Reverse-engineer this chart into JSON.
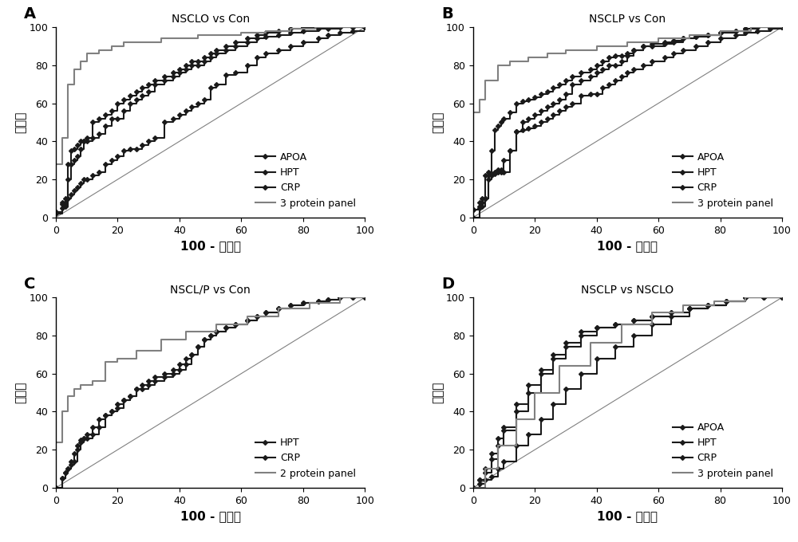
{
  "panels": [
    {
      "label": "A",
      "title": "NSCLO vs Con",
      "series": [
        {
          "name": "APOA",
          "x": [
            0,
            2,
            3,
            4,
            5,
            6,
            7,
            8,
            9,
            10,
            12,
            14,
            16,
            18,
            20,
            22,
            24,
            26,
            28,
            30,
            32,
            35,
            38,
            40,
            42,
            44,
            46,
            48,
            50,
            52,
            55,
            58,
            62,
            65,
            68,
            72,
            76,
            80,
            85,
            88,
            92,
            96,
            100
          ],
          "y": [
            3,
            7,
            8,
            20,
            28,
            30,
            32,
            36,
            40,
            40,
            42,
            44,
            48,
            52,
            52,
            56,
            60,
            62,
            64,
            66,
            70,
            72,
            74,
            76,
            78,
            80,
            80,
            82,
            84,
            86,
            88,
            90,
            92,
            94,
            95,
            96,
            97,
            98,
            99,
            99,
            100,
            100,
            100
          ],
          "style": "marker"
        },
        {
          "name": "HPT",
          "x": [
            0,
            2,
            3,
            4,
            5,
            6,
            7,
            8,
            9,
            10,
            12,
            14,
            16,
            18,
            20,
            22,
            24,
            26,
            28,
            30,
            32,
            35,
            38,
            40,
            42,
            44,
            46,
            48,
            50,
            52,
            55,
            58,
            62,
            65,
            68,
            72,
            76,
            80,
            85,
            88,
            92,
            96,
            100
          ],
          "y": [
            3,
            8,
            10,
            28,
            35,
            36,
            38,
            40,
            40,
            42,
            50,
            52,
            54,
            56,
            60,
            62,
            64,
            66,
            68,
            70,
            72,
            74,
            76,
            78,
            80,
            82,
            82,
            84,
            86,
            88,
            90,
            92,
            94,
            96,
            97,
            98,
            99,
            100,
            100,
            100,
            100,
            100,
            100
          ],
          "style": "marker"
        },
        {
          "name": "CRP",
          "x": [
            0,
            2,
            3,
            4,
            5,
            6,
            7,
            8,
            9,
            10,
            12,
            14,
            16,
            18,
            20,
            22,
            24,
            26,
            28,
            30,
            32,
            35,
            38,
            40,
            42,
            44,
            46,
            48,
            50,
            52,
            55,
            58,
            62,
            65,
            68,
            72,
            76,
            80,
            85,
            88,
            92,
            96,
            100
          ],
          "y": [
            2,
            5,
            6,
            10,
            12,
            14,
            16,
            18,
            20,
            20,
            22,
            24,
            28,
            30,
            32,
            35,
            36,
            36,
            38,
            40,
            42,
            50,
            52,
            54,
            56,
            58,
            60,
            62,
            68,
            70,
            75,
            76,
            80,
            84,
            86,
            88,
            90,
            92,
            94,
            96,
            97,
            98,
            100
          ],
          "style": "marker"
        },
        {
          "name": "3 protein panel",
          "x": [
            0,
            2,
            4,
            6,
            8,
            10,
            14,
            18,
            22,
            28,
            34,
            40,
            46,
            52,
            60,
            68,
            76,
            84,
            92,
            100
          ],
          "y": [
            28,
            42,
            70,
            78,
            82,
            86,
            88,
            90,
            92,
            92,
            94,
            94,
            96,
            96,
            97,
            98,
            99,
            100,
            100,
            100
          ],
          "style": "line"
        }
      ]
    },
    {
      "label": "B",
      "title": "NSCLP vs Con",
      "series": [
        {
          "name": "APOA",
          "x": [
            0,
            2,
            3,
            4,
            5,
            6,
            7,
            8,
            9,
            10,
            12,
            14,
            16,
            18,
            20,
            22,
            24,
            26,
            28,
            30,
            32,
            35,
            38,
            40,
            42,
            44,
            46,
            48,
            50,
            52,
            55,
            58,
            62,
            65,
            68,
            72,
            76,
            80,
            85,
            88,
            92,
            96,
            100
          ],
          "y": [
            0,
            5,
            6,
            10,
            20,
            22,
            24,
            25,
            25,
            30,
            35,
            45,
            50,
            52,
            54,
            56,
            58,
            60,
            62,
            65,
            70,
            72,
            74,
            76,
            78,
            80,
            80,
            82,
            85,
            88,
            90,
            90,
            92,
            93,
            94,
            95,
            96,
            97,
            98,
            99,
            100,
            100,
            100
          ],
          "style": "marker"
        },
        {
          "name": "HPT",
          "x": [
            0,
            2,
            3,
            4,
            5,
            6,
            7,
            8,
            9,
            10,
            12,
            14,
            16,
            18,
            20,
            22,
            24,
            26,
            28,
            30,
            32,
            35,
            38,
            40,
            42,
            44,
            46,
            48,
            50,
            52,
            55,
            58,
            62,
            65,
            68,
            72,
            76,
            80,
            85,
            88,
            92,
            96,
            100
          ],
          "y": [
            4,
            8,
            10,
            22,
            24,
            35,
            46,
            48,
            50,
            52,
            55,
            60,
            61,
            62,
            63,
            65,
            66,
            68,
            70,
            72,
            74,
            76,
            78,
            80,
            82,
            84,
            85,
            85,
            86,
            88,
            90,
            91,
            91,
            92,
            94,
            95,
            96,
            97,
            98,
            99,
            100,
            100,
            100
          ],
          "style": "marker"
        },
        {
          "name": "CRP",
          "x": [
            0,
            2,
            3,
            4,
            5,
            6,
            7,
            8,
            9,
            10,
            12,
            14,
            16,
            18,
            20,
            22,
            24,
            26,
            28,
            30,
            32,
            35,
            38,
            40,
            42,
            44,
            46,
            48,
            50,
            52,
            55,
            58,
            62,
            65,
            68,
            72,
            76,
            80,
            85,
            88,
            92,
            96,
            100
          ],
          "y": [
            4,
            6,
            8,
            10,
            22,
            23,
            23,
            24,
            24,
            24,
            35,
            45,
            46,
            47,
            48,
            50,
            52,
            54,
            56,
            58,
            60,
            64,
            65,
            65,
            68,
            70,
            72,
            74,
            76,
            78,
            80,
            82,
            84,
            86,
            88,
            90,
            92,
            94,
            96,
            97,
            98,
            99,
            100
          ],
          "style": "marker"
        },
        {
          "name": "3 protein panel",
          "x": [
            0,
            2,
            4,
            8,
            12,
            18,
            24,
            30,
            40,
            50,
            60,
            70,
            80,
            90,
            100
          ],
          "y": [
            55,
            62,
            72,
            80,
            82,
            84,
            86,
            88,
            90,
            92,
            94,
            96,
            98,
            100,
            100
          ],
          "style": "line"
        }
      ]
    },
    {
      "label": "C",
      "title": "NSCL/P vs Con",
      "series": [
        {
          "name": "HPT",
          "x": [
            0,
            2,
            3,
            4,
            5,
            6,
            7,
            8,
            9,
            10,
            12,
            14,
            16,
            18,
            20,
            22,
            24,
            26,
            28,
            30,
            32,
            35,
            38,
            40,
            42,
            44,
            46,
            48,
            50,
            52,
            55,
            58,
            62,
            65,
            68,
            72,
            76,
            80,
            85,
            88,
            92,
            96,
            100
          ],
          "y": [
            0,
            5,
            8,
            10,
            14,
            18,
            22,
            25,
            26,
            28,
            32,
            36,
            38,
            40,
            44,
            46,
            48,
            52,
            54,
            56,
            58,
            60,
            62,
            65,
            68,
            70,
            74,
            78,
            80,
            82,
            84,
            86,
            88,
            90,
            92,
            94,
            96,
            97,
            98,
            99,
            100,
            100,
            100
          ],
          "style": "marker"
        },
        {
          "name": "CRP",
          "x": [
            0,
            2,
            3,
            4,
            5,
            6,
            7,
            8,
            9,
            10,
            12,
            14,
            16,
            18,
            20,
            22,
            24,
            26,
            28,
            30,
            32,
            35,
            38,
            40,
            42,
            44,
            46,
            48,
            50,
            52,
            55,
            58,
            62,
            65,
            68,
            72,
            76,
            80,
            85,
            88,
            92,
            96,
            100
          ],
          "y": [
            0,
            5,
            8,
            10,
            12,
            14,
            20,
            24,
            26,
            26,
            28,
            32,
            38,
            40,
            42,
            46,
            48,
            52,
            52,
            54,
            56,
            58,
            60,
            62,
            65,
            70,
            74,
            78,
            80,
            82,
            84,
            86,
            88,
            90,
            92,
            94,
            96,
            97,
            98,
            99,
            100,
            100,
            100
          ],
          "style": "marker"
        },
        {
          "name": "2 protein panel",
          "x": [
            0,
            2,
            4,
            6,
            8,
            12,
            16,
            20,
            26,
            34,
            42,
            52,
            62,
            72,
            82,
            92,
            100
          ],
          "y": [
            24,
            40,
            48,
            52,
            54,
            56,
            66,
            68,
            72,
            78,
            82,
            86,
            90,
            94,
            97,
            100,
            100
          ],
          "style": "line"
        }
      ]
    },
    {
      "label": "D",
      "title": "NSCLP vs NSCLO",
      "series": [
        {
          "name": "APOA",
          "x": [
            0,
            2,
            4,
            6,
            8,
            10,
            14,
            18,
            22,
            26,
            30,
            35,
            40,
            46,
            52,
            58,
            64,
            70,
            76,
            82,
            88,
            94,
            100
          ],
          "y": [
            0,
            4,
            8,
            15,
            22,
            30,
            40,
            50,
            60,
            68,
            74,
            80,
            84,
            86,
            88,
            90,
            92,
            94,
            96,
            98,
            100,
            100,
            100
          ],
          "style": "marker"
        },
        {
          "name": "HPT",
          "x": [
            0,
            2,
            4,
            6,
            8,
            10,
            14,
            18,
            22,
            26,
            30,
            35,
            40,
            46,
            52,
            58,
            64,
            70,
            76,
            82,
            88,
            94,
            100
          ],
          "y": [
            0,
            4,
            10,
            18,
            26,
            32,
            44,
            54,
            62,
            70,
            76,
            82,
            84,
            86,
            88,
            90,
            92,
            94,
            96,
            98,
            100,
            100,
            100
          ],
          "style": "marker"
        },
        {
          "name": "CRP",
          "x": [
            0,
            2,
            4,
            6,
            8,
            10,
            14,
            18,
            22,
            26,
            30,
            35,
            40,
            46,
            52,
            58,
            64,
            70,
            76,
            82,
            88,
            94,
            100
          ],
          "y": [
            0,
            2,
            4,
            6,
            10,
            14,
            22,
            28,
            36,
            44,
            52,
            60,
            68,
            74,
            80,
            86,
            90,
            94,
            96,
            98,
            100,
            100,
            100
          ],
          "style": "marker"
        },
        {
          "name": "3 protein panel",
          "x": [
            0,
            4,
            8,
            14,
            20,
            28,
            38,
            48,
            58,
            68,
            78,
            88,
            96,
            100
          ],
          "y": [
            0,
            10,
            22,
            36,
            50,
            64,
            76,
            86,
            92,
            96,
            98,
            100,
            100,
            100
          ],
          "style": "line"
        }
      ]
    }
  ],
  "diagonal": {
    "x": [
      0,
      100
    ],
    "y": [
      0,
      100
    ]
  },
  "xlim": [
    0,
    100
  ],
  "ylim": [
    0,
    100
  ],
  "xticks": [
    0,
    20,
    40,
    60,
    80,
    100
  ],
  "yticks": [
    0,
    20,
    40,
    60,
    80,
    100
  ],
  "xlabel": "100 - 特异度",
  "ylabel": "灵敏度",
  "marker_color": "#1a1a1a",
  "line_color": "#808080",
  "bg_color": "#ffffff",
  "marker": "D",
  "marker_size": 3,
  "line_width": 1.5,
  "panel_label_fontsize": 14,
  "title_fontsize": 10,
  "tick_fontsize": 9,
  "axis_label_fontsize": 11,
  "legend_fontsize": 9
}
